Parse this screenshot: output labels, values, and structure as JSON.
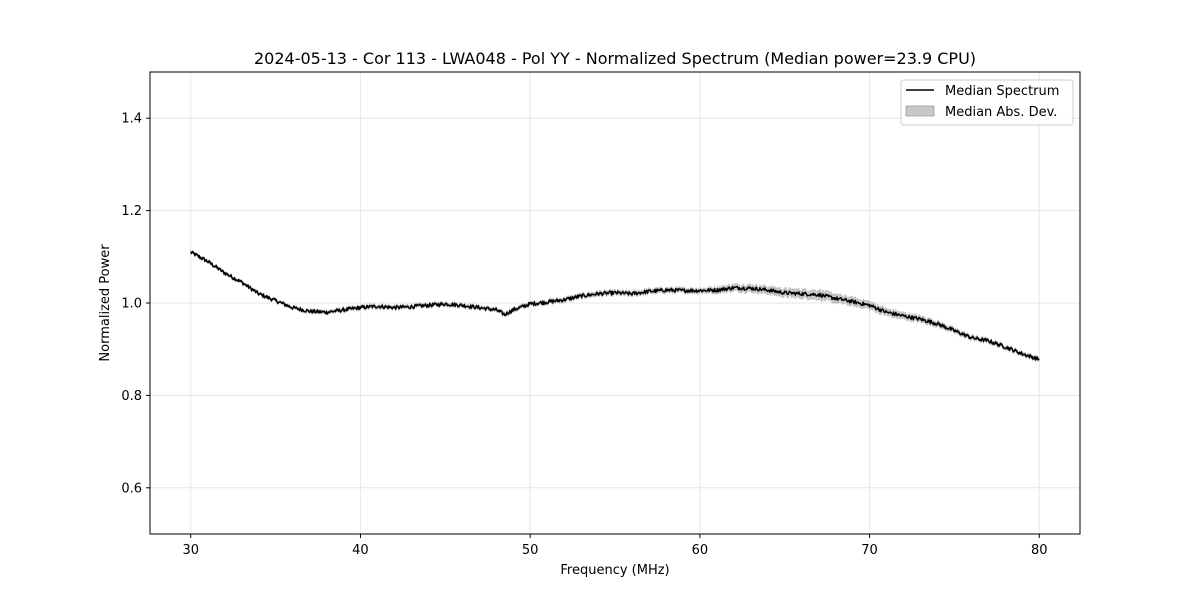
{
  "chart_data": {
    "type": "line",
    "title": "2024-05-13 - Cor 113 - LWA048 - Pol YY - Normalized Spectrum (Median power=23.9 CPU)",
    "xlabel": "Frequency (MHz)",
    "ylabel": "Normalized Power",
    "xlim": [
      27.6,
      82.4
    ],
    "ylim": [
      0.5,
      1.5
    ],
    "xticks": [
      30,
      40,
      50,
      60,
      70,
      80
    ],
    "yticks": [
      0.6,
      0.8,
      1.0,
      1.2,
      1.4
    ],
    "xtick_labels": [
      "30",
      "40",
      "50",
      "60",
      "70",
      "80"
    ],
    "ytick_labels": [
      "0.6",
      "0.8",
      "1.0",
      "1.2",
      "1.4"
    ],
    "grid": true,
    "legend_position": "top-right",
    "series": [
      {
        "name": "Median Spectrum",
        "color": "#000000",
        "x": [
          30,
          31,
          32,
          33,
          34,
          35,
          36,
          37,
          38,
          39,
          40,
          41,
          42,
          43,
          44,
          45,
          46,
          47,
          48,
          48.5,
          49,
          50,
          51,
          52,
          53,
          54,
          55,
          56,
          57,
          58,
          59,
          60,
          61,
          62,
          63,
          64,
          65,
          66,
          67,
          68,
          69,
          70,
          71,
          72,
          73,
          74,
          75,
          76,
          77,
          78,
          79,
          80
        ],
        "values": [
          1.11,
          1.09,
          1.065,
          1.045,
          1.02,
          1.005,
          0.99,
          0.982,
          0.98,
          0.985,
          0.99,
          0.993,
          0.99,
          0.992,
          0.995,
          0.998,
          0.995,
          0.99,
          0.985,
          0.975,
          0.985,
          0.998,
          1.002,
          1.007,
          1.015,
          1.02,
          1.022,
          1.02,
          1.025,
          1.028,
          1.027,
          1.027,
          1.028,
          1.033,
          1.032,
          1.028,
          1.022,
          1.02,
          1.018,
          1.01,
          1.003,
          0.995,
          0.98,
          0.972,
          0.965,
          0.955,
          0.94,
          0.925,
          0.918,
          0.905,
          0.89,
          0.878
        ]
      },
      {
        "name": "Median Abs. Dev.",
        "color": "#c8c8c8",
        "type": "band",
        "x": [
          30,
          35,
          40,
          45,
          50,
          55,
          60,
          62,
          64,
          66,
          67,
          68,
          70,
          72,
          75,
          78,
          80
        ],
        "dev": [
          0.003,
          0.003,
          0.004,
          0.004,
          0.004,
          0.005,
          0.005,
          0.007,
          0.008,
          0.009,
          0.01,
          0.009,
          0.008,
          0.007,
          0.005,
          0.004,
          0.004
        ]
      }
    ]
  },
  "legend": {
    "items": [
      {
        "label": "Median Spectrum"
      },
      {
        "label": "Median Abs. Dev."
      }
    ]
  }
}
